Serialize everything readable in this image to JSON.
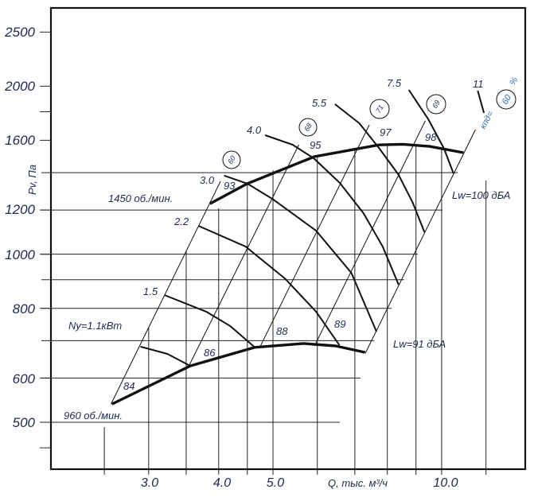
{
  "chart_data": {
    "type": "line",
    "xlabel": "Q, тыс. м³/ч",
    "ylabel": "Pv, Па",
    "x_scale": "log",
    "y_scale": "log",
    "xlim": [
      2.1,
      14.5
    ],
    "ylim": [
      410,
      2800
    ],
    "grid": true,
    "x_ticks": [
      "3.0",
      "4.0",
      "5.0",
      "10.0"
    ],
    "x_tick_values": [
      3.0,
      4.0,
      5.0,
      10.0
    ],
    "y_ticks": [
      "2500",
      "2000",
      "1600",
      "1200",
      "1000",
      "800",
      "600",
      "500"
    ],
    "y_tick_values": [
      2500,
      2000,
      1600,
      1200,
      1000,
      800,
      600,
      500
    ],
    "x_grid": [
      2.5,
      3.0,
      3.5,
      4.0,
      4.5,
      5.0,
      6.0,
      7.0,
      8.0,
      9.0,
      10.0,
      12.0
    ],
    "y_grid": [
      500,
      600,
      700,
      800,
      900,
      1000,
      1200,
      1400
    ],
    "speed_curves": [
      {
        "name": "1450 об./мин.",
        "points": [
          [
            3.86,
            1232
          ],
          [
            4.5,
            1338
          ],
          [
            5.93,
            1496
          ],
          [
            7.73,
            1570
          ],
          [
            8.52,
            1574
          ],
          [
            9.52,
            1560
          ],
          [
            10.94,
            1520
          ]
        ]
      },
      {
        "name": "960 об./мин.",
        "points": [
          [
            2.58,
            539
          ],
          [
            3.56,
            631
          ],
          [
            4.64,
            681
          ],
          [
            5.67,
            692
          ],
          [
            6.47,
            685
          ],
          [
            7.3,
            667
          ]
        ]
      }
    ],
    "power_curves": [
      {
        "name": "1.1",
        "points": [
          [
            2.9,
            683
          ],
          [
            3.24,
            663
          ],
          [
            3.56,
            631
          ]
        ]
      },
      {
        "name": "1.5",
        "points": [
          [
            3.2,
            845
          ],
          [
            3.8,
            789
          ],
          [
            4.19,
            744
          ],
          [
            4.64,
            681
          ]
        ]
      },
      {
        "name": "2.2",
        "points": [
          [
            3.68,
            1124
          ],
          [
            4.47,
            1032
          ],
          [
            5.25,
            905
          ],
          [
            5.97,
            789
          ],
          [
            6.57,
            687
          ]
        ]
      },
      {
        "name": "3.0",
        "points": [
          [
            4.09,
            1383
          ],
          [
            4.5,
            1338
          ],
          [
            4.99,
            1256
          ],
          [
            5.97,
            1102
          ],
          [
            6.9,
            926
          ],
          [
            7.65,
            727
          ]
        ]
      },
      {
        "name": "4.0",
        "points": [
          [
            4.84,
            1634
          ],
          [
            5.42,
            1571
          ],
          [
            5.91,
            1486
          ],
          [
            6.58,
            1342
          ],
          [
            7.25,
            1185
          ],
          [
            7.85,
            1032
          ],
          [
            8.38,
            882
          ]
        ]
      },
      {
        "name": "5.5",
        "points": [
          [
            6.45,
            1857
          ],
          [
            7.13,
            1716
          ],
          [
            7.73,
            1550
          ],
          [
            8.38,
            1387
          ],
          [
            8.88,
            1237
          ],
          [
            9.32,
            1095
          ]
        ]
      },
      {
        "name": "7.5",
        "points": [
          [
            8.74,
            1970
          ],
          [
            9.47,
            1744
          ],
          [
            10.1,
            1545
          ],
          [
            10.5,
            1396
          ]
        ]
      },
      {
        "name": "11",
        "points": [
          [
            11.6,
            1963
          ],
          [
            11.9,
            1791
          ]
        ]
      }
    ],
    "efficiency_lines": [
      {
        "efficiency": "60",
        "lw_960": "84",
        "lw_1450": "93",
        "points": [
          [
            2.57,
            539
          ],
          [
            4.03,
            1351
          ]
        ]
      },
      {
        "efficiency": "68",
        "lw_960": "86",
        "lw_1450": "95",
        "points": [
          [
            3.54,
            631
          ],
          [
            5.56,
            1571
          ]
        ]
      },
      {
        "efficiency": "71",
        "lw_960": "88",
        "lw_1450": "97",
        "points": [
          [
            4.73,
            679
          ],
          [
            7.43,
            1705
          ]
        ]
      },
      {
        "efficiency": "69",
        "lw_960": "89",
        "lw_1450": "98",
        "points": [
          [
            5.93,
            685
          ],
          [
            9.35,
            1734
          ]
        ]
      },
      {
        "efficiency": "60",
        "points": [
          [
            7.31,
            665
          ],
          [
            11.49,
            1672
          ]
        ]
      }
    ]
  },
  "labels": {
    "speed_1450": "1450 об./мин.",
    "speed_960": "960 об./мин.",
    "power_prefix": "Ny=1.1кВт",
    "power_1_5": "1.5",
    "power_2_2": "2.2",
    "power_3_0": "3.0",
    "power_4_0": "4.0",
    "power_5_5": "5.5",
    "power_7_5": "7.5",
    "power_11": "11",
    "lw_84": "84",
    "lw_86": "86",
    "lw_88": "88",
    "lw_89": "89",
    "lw_93": "93",
    "lw_95": "95",
    "lw_97": "97",
    "lw_98": "98",
    "lw_max": "Lw=100 дБА",
    "lw_min": "Lw=91 дБА",
    "eff_1": "60",
    "eff_2": "68",
    "eff_3": "71",
    "eff_4": "69",
    "eff_5": "60",
    "eff_prefix": "кпд=",
    "eff_unit": "%"
  },
  "colors": {
    "line": "#111111",
    "grid": "#333333",
    "text": "#1b2a4e",
    "efficiency_text": "#2f6fb0"
  }
}
